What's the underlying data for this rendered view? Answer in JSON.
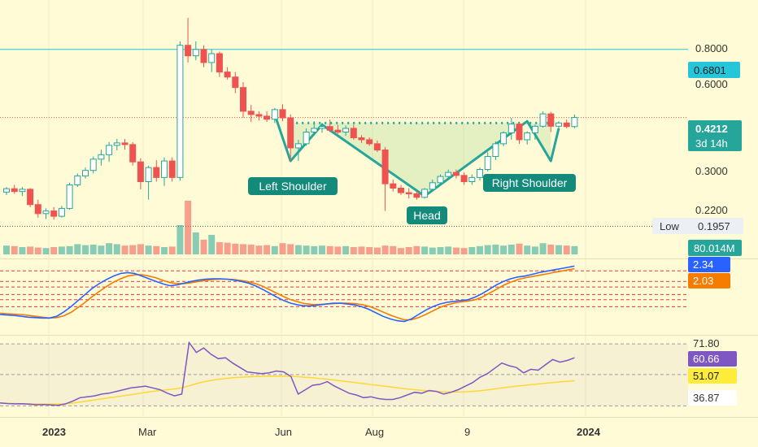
{
  "chart_data": [
    {
      "type": "candlestick",
      "y_scale": "log",
      "ylim": [
        0.178,
        0.92
      ],
      "y_ticks": [
        "0.8000",
        "0.6000",
        "0.3000",
        "0.2200"
      ],
      "x_ticks": [
        "2023",
        "Mar",
        "Jun",
        "Aug",
        "9",
        "2024"
      ],
      "resistance_level": 0.6801,
      "neckline_level": 0.405,
      "badges": {
        "resistance": "0.6801",
        "last_price": "0.4212",
        "countdown": "3d 14h",
        "low_label": "Low",
        "low_value": "0.1957",
        "volume": "80.014M"
      },
      "pattern_labels": {
        "left_shoulder": "Left Shoulder",
        "head": "Head",
        "right_shoulder": "Right Shoulder"
      },
      "candles": [
        [
          0.249,
          0.258,
          0.244,
          0.255
        ],
        [
          0.255,
          0.262,
          0.246,
          0.25
        ],
        [
          0.25,
          0.258,
          0.242,
          0.254
        ],
        [
          0.254,
          0.256,
          0.224,
          0.228
        ],
        [
          0.228,
          0.236,
          0.208,
          0.214
        ],
        [
          0.214,
          0.222,
          0.206,
          0.218
        ],
        [
          0.218,
          0.224,
          0.205,
          0.21
        ],
        [
          0.21,
          0.226,
          0.208,
          0.222
        ],
        [
          0.222,
          0.266,
          0.22,
          0.262
        ],
        [
          0.262,
          0.284,
          0.258,
          0.279
        ],
        [
          0.279,
          0.296,
          0.274,
          0.29
        ],
        [
          0.29,
          0.32,
          0.284,
          0.314
        ],
        [
          0.314,
          0.336,
          0.3,
          0.324
        ],
        [
          0.324,
          0.354,
          0.308,
          0.346
        ],
        [
          0.346,
          0.362,
          0.334,
          0.352
        ],
        [
          0.352,
          0.362,
          0.336,
          0.348
        ],
        [
          0.348,
          0.354,
          0.3,
          0.308
        ],
        [
          0.308,
          0.316,
          0.254,
          0.268
        ],
        [
          0.268,
          0.3,
          0.236,
          0.296
        ],
        [
          0.296,
          0.312,
          0.268,
          0.276
        ],
        [
          0.276,
          0.318,
          0.26,
          0.31
        ],
        [
          0.31,
          0.318,
          0.268,
          0.276
        ],
        [
          0.276,
          0.72,
          0.27,
          0.7
        ],
        [
          0.7,
          0.85,
          0.62,
          0.65
        ],
        [
          0.65,
          0.72,
          0.63,
          0.68
        ],
        [
          0.68,
          0.7,
          0.6,
          0.62
        ],
        [
          0.62,
          0.68,
          0.58,
          0.66
        ],
        [
          0.66,
          0.67,
          0.56,
          0.58
        ],
        [
          0.58,
          0.6,
          0.55,
          0.56
        ],
        [
          0.56,
          0.58,
          0.5,
          0.52
        ],
        [
          0.52,
          0.54,
          0.42,
          0.44
        ],
        [
          0.44,
          0.46,
          0.408,
          0.43
        ],
        [
          0.43,
          0.44,
          0.412,
          0.425
        ],
        [
          0.425,
          0.44,
          0.408,
          0.416
        ],
        [
          0.416,
          0.45,
          0.405,
          0.445
        ],
        [
          0.445,
          0.462,
          0.41,
          0.42
        ],
        [
          0.42,
          0.43,
          0.31,
          0.34
        ],
        [
          0.34,
          0.36,
          0.31,
          0.35
        ],
        [
          0.35,
          0.39,
          0.345,
          0.38
        ],
        [
          0.38,
          0.41,
          0.375,
          0.39
        ],
        [
          0.39,
          0.405,
          0.378,
          0.395
        ],
        [
          0.395,
          0.415,
          0.38,
          0.385
        ],
        [
          0.385,
          0.4,
          0.375,
          0.38
        ],
        [
          0.38,
          0.398,
          0.37,
          0.39
        ],
        [
          0.39,
          0.4,
          0.36,
          0.365
        ],
        [
          0.365,
          0.372,
          0.352,
          0.36
        ],
        [
          0.36,
          0.366,
          0.345,
          0.35
        ],
        [
          0.35,
          0.358,
          0.33,
          0.335
        ],
        [
          0.335,
          0.342,
          0.218,
          0.264
        ],
        [
          0.264,
          0.272,
          0.25,
          0.256
        ],
        [
          0.256,
          0.262,
          0.244,
          0.248
        ],
        [
          0.248,
          0.256,
          0.238,
          0.246
        ],
        [
          0.246,
          0.252,
          0.236,
          0.24
        ],
        [
          0.24,
          0.256,
          0.238,
          0.254
        ],
        [
          0.254,
          0.272,
          0.25,
          0.266
        ],
        [
          0.266,
          0.282,
          0.262,
          0.278
        ],
        [
          0.278,
          0.292,
          0.272,
          0.286
        ],
        [
          0.286,
          0.292,
          0.274,
          0.28
        ],
        [
          0.28,
          0.286,
          0.262,
          0.268
        ],
        [
          0.268,
          0.282,
          0.262,
          0.276
        ],
        [
          0.276,
          0.296,
          0.27,
          0.292
        ],
        [
          0.292,
          0.33,
          0.288,
          0.32
        ],
        [
          0.32,
          0.356,
          0.312,
          0.35
        ],
        [
          0.35,
          0.382,
          0.344,
          0.378
        ],
        [
          0.378,
          0.42,
          0.36,
          0.402
        ],
        [
          0.402,
          0.406,
          0.35,
          0.36
        ],
        [
          0.36,
          0.382,
          0.348,
          0.378
        ],
        [
          0.378,
          0.4,
          0.36,
          0.396
        ],
        [
          0.396,
          0.44,
          0.392,
          0.432
        ],
        [
          0.432,
          0.438,
          0.38,
          0.396
        ],
        [
          0.396,
          0.41,
          0.38,
          0.405
        ],
        [
          0.405,
          0.415,
          0.39,
          0.395
        ],
        [
          0.395,
          0.43,
          0.39,
          0.421
        ]
      ],
      "volume": [
        3.6,
        3.4,
        3.0,
        3.2,
        2.8,
        2.6,
        3.0,
        3.2,
        3.4,
        4.2,
        3.8,
        4.0,
        3.6,
        4.6,
        4.2,
        3.6,
        3.8,
        4.2,
        3.6,
        3.4,
        3.0,
        3.2,
        12.0,
        22.0,
        9.0,
        6.0,
        8.0,
        5.0,
        4.8,
        4.4,
        4.2,
        4.0,
        3.6,
        3.8,
        3.4,
        4.6,
        4.2,
        3.8,
        3.6,
        3.4,
        3.6,
        3.4,
        3.2,
        3.4,
        3.0,
        3.2,
        3.0,
        2.8,
        3.6,
        3.4,
        2.6,
        3.0,
        3.4,
        3.2,
        2.8,
        3.0,
        3.2,
        2.8,
        2.6,
        3.0,
        3.4,
        3.8,
        4.0,
        3.6,
        4.0,
        4.4,
        3.6,
        3.2,
        4.6,
        4.0,
        3.8,
        3.6,
        3.4
      ],
      "macd": {
        "badges": [
          "2.34",
          "2.03"
        ],
        "ylim": [
          -0.075,
          0.085
        ],
        "level_lines": [
          0.064,
          0.04,
          0.027,
          0.01,
          -0.002,
          -0.018
        ],
        "macd_line": [
          -0.036,
          -0.037,
          -0.038,
          -0.04,
          -0.042,
          -0.043,
          -0.044,
          -0.044,
          -0.04,
          -0.03,
          -0.018,
          -0.004,
          0.01,
          0.024,
          0.035,
          0.044,
          0.052,
          0.058,
          0.06,
          0.058,
          0.052,
          0.046,
          0.04,
          0.034,
          0.03,
          0.032,
          0.036,
          0.04,
          0.043,
          0.045,
          0.046,
          0.046,
          0.045,
          0.043,
          0.04,
          0.036,
          0.03,
          0.022,
          0.013,
          0.004,
          -0.004,
          -0.01,
          -0.014,
          -0.016,
          -0.016,
          -0.014,
          -0.012,
          -0.01,
          -0.01,
          -0.012,
          -0.014,
          -0.018,
          -0.024,
          -0.032,
          -0.04,
          -0.046,
          -0.05,
          -0.052,
          -0.046,
          -0.036,
          -0.026,
          -0.018,
          -0.012,
          -0.008,
          -0.006,
          -0.004,
          -0.002,
          0.004,
          0.012,
          0.022,
          0.032,
          0.04,
          0.046,
          0.05,
          0.052,
          0.056,
          0.06,
          0.063,
          0.066,
          0.069,
          0.072,
          0.075
        ],
        "signal_line": [
          -0.033,
          -0.034,
          -0.035,
          -0.036,
          -0.038,
          -0.04,
          -0.042,
          -0.044,
          -0.043,
          -0.039,
          -0.031,
          -0.02,
          -0.008,
          0.005,
          0.017,
          0.028,
          0.038,
          0.046,
          0.052,
          0.055,
          0.055,
          0.052,
          0.048,
          0.042,
          0.037,
          0.035,
          0.035,
          0.037,
          0.04,
          0.042,
          0.044,
          0.045,
          0.045,
          0.044,
          0.042,
          0.039,
          0.035,
          0.029,
          0.021,
          0.013,
          0.005,
          -0.002,
          -0.007,
          -0.011,
          -0.013,
          -0.013,
          -0.012,
          -0.011,
          -0.01,
          -0.01,
          -0.011,
          -0.013,
          -0.017,
          -0.023,
          -0.03,
          -0.037,
          -0.043,
          -0.048,
          -0.048,
          -0.043,
          -0.036,
          -0.028,
          -0.02,
          -0.014,
          -0.01,
          -0.007,
          -0.005,
          -0.002,
          0.004,
          0.013,
          0.022,
          0.031,
          0.038,
          0.044,
          0.048,
          0.051,
          0.054,
          0.057,
          0.06,
          0.063,
          0.066,
          0.069
        ]
      },
      "rsi": {
        "badges": [
          "71.80",
          "60.66",
          "51.07",
          "36.87"
        ],
        "ylim": [
          32,
          76
        ],
        "upper_band": 71.8,
        "lower_band": 36.87,
        "mid_line": 54.5,
        "rsi_line": [
          38.5,
          38.2,
          38.0,
          38.1,
          37.8,
          37.5,
          37.6,
          37.4,
          37.2,
          38.0,
          39.5,
          41.5,
          42.0,
          42.5,
          43.5,
          44.0,
          45.0,
          46.0,
          47.0,
          47.5,
          48.0,
          47.0,
          46.0,
          44.0,
          42.5,
          43.5,
          72.5,
          67.0,
          69.5,
          66.0,
          63.5,
          64.0,
          61.0,
          58.5,
          56.0,
          55.5,
          55.0,
          55.5,
          56.5,
          56.0,
          53.5,
          43.5,
          46.0,
          48.5,
          49.0,
          50.5,
          48.0,
          46.0,
          44.0,
          43.0,
          41.5,
          42.0,
          41.0,
          40.5,
          40.5,
          41.5,
          43.0,
          44.5,
          44.0,
          45.5,
          45.0,
          43.5,
          44.5,
          46.0,
          48.0,
          50.0,
          53.0,
          55.0,
          58.0,
          61.0,
          59.5,
          58.5,
          55.5,
          57.5,
          57.0,
          60.0,
          63.0,
          61.5,
          62.5,
          64.0
        ],
        "rsi_ma": [
          38.4,
          38.3,
          38.2,
          38.1,
          38.0,
          37.9,
          37.9,
          37.8,
          37.8,
          38.0,
          38.4,
          39.0,
          39.6,
          40.2,
          40.8,
          41.4,
          42.0,
          42.6,
          43.2,
          43.8,
          44.4,
          45.0,
          45.5,
          46.0,
          46.4,
          47.0,
          48.2,
          49.4,
          50.4,
          51.2,
          51.8,
          52.3,
          52.7,
          53.0,
          53.2,
          53.4,
          53.5,
          53.6,
          53.6,
          53.6,
          53.5,
          53.3,
          53.0,
          52.7,
          52.3,
          51.9,
          51.4,
          50.9,
          50.4,
          49.9,
          49.4,
          48.9,
          48.4,
          47.9,
          47.4,
          46.9,
          46.4,
          46.0,
          45.6,
          45.3,
          45.0,
          44.8,
          44.7,
          44.7,
          44.8,
          45.0,
          45.4,
          45.9,
          46.4,
          47.0,
          47.5,
          48.0,
          48.4,
          48.8,
          49.2,
          49.6,
          50.0,
          50.4,
          50.7,
          51.07
        ]
      }
    }
  ]
}
